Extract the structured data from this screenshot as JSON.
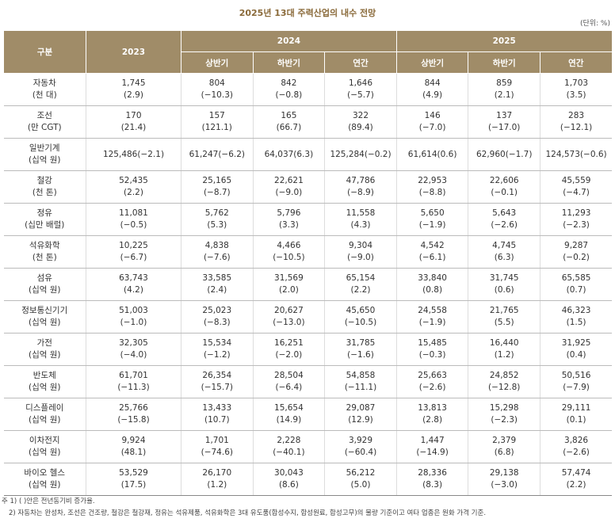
{
  "header": {
    "title": "2025년 13대 주력산업의 내수 전망",
    "unit": "(단위: %)"
  },
  "table": {
    "corner": "구분",
    "year_2023": "2023",
    "year_2024": "2024",
    "year_2025": "2025",
    "subheaders": [
      "상반기",
      "하반기",
      "연간",
      "상반기",
      "하반기",
      "연간"
    ],
    "rows": [
      {
        "name": [
          "자동차",
          "(천 대)"
        ],
        "cells": [
          [
            "1,745",
            "(2.9)"
          ],
          [
            "804",
            "(−10.3)"
          ],
          [
            "842",
            "(−0.8)"
          ],
          [
            "1,646",
            "(−5.7)"
          ],
          [
            "844",
            "(4.9)"
          ],
          [
            "859",
            "(2.1)"
          ],
          [
            "1,703",
            "(3.5)"
          ]
        ]
      },
      {
        "name": [
          "조선",
          "(만 CGT)"
        ],
        "cells": [
          [
            "170",
            "(21.4)"
          ],
          [
            "157",
            "(121.1)"
          ],
          [
            "165",
            "(66.7)"
          ],
          [
            "322",
            "(89.4)"
          ],
          [
            "146",
            "(−7.0)"
          ],
          [
            "137",
            "(−17.0)"
          ],
          [
            "283",
            "(−12.1)"
          ]
        ]
      },
      {
        "name": [
          "일반기계",
          "(십억 원)"
        ],
        "cells": [
          [
            "125,486(−2.1)"
          ],
          [
            "61,247(−6.2)"
          ],
          [
            "64,037(6.3)"
          ],
          [
            "125,284(−0.2)"
          ],
          [
            "61,614(0.6)"
          ],
          [
            "62,960(−1.7)"
          ],
          [
            "124,573(−0.6)"
          ]
        ]
      },
      {
        "name": [
          "철강",
          "(천 톤)"
        ],
        "cells": [
          [
            "52,435",
            "(2.2)"
          ],
          [
            "25,165",
            "(−8.7)"
          ],
          [
            "22,621",
            "(−9.0)"
          ],
          [
            "47,786",
            "(−8.9)"
          ],
          [
            "22,953",
            "(−8.8)"
          ],
          [
            "22,606",
            "(−0.1)"
          ],
          [
            "45,559",
            "(−4.7)"
          ]
        ]
      },
      {
        "name": [
          "정유",
          "(십만 배럴)"
        ],
        "cells": [
          [
            "11,081",
            "(−0.5)"
          ],
          [
            "5,762",
            "(5.3)"
          ],
          [
            "5,796",
            "(3.3)"
          ],
          [
            "11,558",
            "(4.3)"
          ],
          [
            "5,650",
            "(−1.9)"
          ],
          [
            "5,643",
            "(−2.6)"
          ],
          [
            "11,293",
            "(−2.3)"
          ]
        ]
      },
      {
        "name": [
          "석유화학",
          "(천 톤)"
        ],
        "cells": [
          [
            "10,225",
            "(−6.7)"
          ],
          [
            "4,838",
            "(−7.6)"
          ],
          [
            "4,466",
            "(−10.5)"
          ],
          [
            "9,304",
            "(−9.0)"
          ],
          [
            "4,542",
            "(−6.1)"
          ],
          [
            "4,745",
            "(6.3)"
          ],
          [
            "9,287",
            "(−0.2)"
          ]
        ]
      },
      {
        "name": [
          "섬유",
          "(십억 원)"
        ],
        "cells": [
          [
            "63,743",
            "(4.2)"
          ],
          [
            "33,585",
            "(2.4)"
          ],
          [
            "31,569",
            "(2.0)"
          ],
          [
            "65,154",
            "(2.2)"
          ],
          [
            "33,840",
            "(0.8)"
          ],
          [
            "31,745",
            "(0.6)"
          ],
          [
            "65,585",
            "(0.7)"
          ]
        ]
      },
      {
        "name": [
          "정보통신기기",
          "(십억 원)"
        ],
        "cells": [
          [
            "51,003",
            "(−1.0)"
          ],
          [
            "25,023",
            "(−8.3)"
          ],
          [
            "20,627",
            "(−13.0)"
          ],
          [
            "45,650",
            "(−10.5)"
          ],
          [
            "24,558",
            "(−1.9)"
          ],
          [
            "21,765",
            "(5.5)"
          ],
          [
            "46,323",
            "(1.5)"
          ]
        ]
      },
      {
        "name": [
          "가전",
          "(십억 원)"
        ],
        "cells": [
          [
            "32,305",
            "(−4.0)"
          ],
          [
            "15,534",
            "(−1.2)"
          ],
          [
            "16,251",
            "(−2.0)"
          ],
          [
            "31,785",
            "(−1.6)"
          ],
          [
            "15,485",
            "(−0.3)"
          ],
          [
            "16,440",
            "(1.2)"
          ],
          [
            "31,925",
            "(0.4)"
          ]
        ]
      },
      {
        "name": [
          "반도체",
          "(십억 원)"
        ],
        "cells": [
          [
            "61,701",
            "(−11.3)"
          ],
          [
            "26,354",
            "(−15.7)"
          ],
          [
            "28,504",
            "(−6.4)"
          ],
          [
            "54,858",
            "(−11.1)"
          ],
          [
            "25,663",
            "(−2.6)"
          ],
          [
            "24,852",
            "(−12.8)"
          ],
          [
            "50,516",
            "(−7.9)"
          ]
        ]
      },
      {
        "name": [
          "디스플레이",
          "(십억 원)"
        ],
        "cells": [
          [
            "25,766",
            "(−15.8)"
          ],
          [
            "13,433",
            "(10.7)"
          ],
          [
            "15,654",
            "(14.9)"
          ],
          [
            "29,087",
            "(12.9)"
          ],
          [
            "13,813",
            "(2.8)"
          ],
          [
            "15,298",
            "(−2.3)"
          ],
          [
            "29,111",
            "(0.1)"
          ]
        ]
      },
      {
        "name": [
          "이차전지",
          "(십억 원)"
        ],
        "cells": [
          [
            "9,924",
            "(48.1)"
          ],
          [
            "1,701",
            "(−74.6)"
          ],
          [
            "2,228",
            "(−40.1)"
          ],
          [
            "3,929",
            "(−60.4)"
          ],
          [
            "1,447",
            "(−14.9)"
          ],
          [
            "2,379",
            "(6.8)"
          ],
          [
            "3,826",
            "(−2.6)"
          ]
        ]
      },
      {
        "name": [
          "바이오 헬스",
          "(십억 원)"
        ],
        "cells": [
          [
            "53,529",
            "(17.5)"
          ],
          [
            "26,170",
            "(1.2)"
          ],
          [
            "30,043",
            "(8.6)"
          ],
          [
            "56,212",
            "(5.0)"
          ],
          [
            "28,336",
            "(8.3)"
          ],
          [
            "29,138",
            "(−3.0)"
          ],
          [
            "57,474",
            "(2.2)"
          ]
        ]
      }
    ]
  },
  "notes": [
    "주 1) ( )안은 전년동기비 증가율.",
    "2) 자동차는 완성차, 조선은 건조량, 철강은 철강재, 정유는 석유제품, 석유화학은 3대 유도품(합성수지, 합성원료, 합성고무)의 물량 기준이고 여타 업종은 원화 가격 기준."
  ]
}
